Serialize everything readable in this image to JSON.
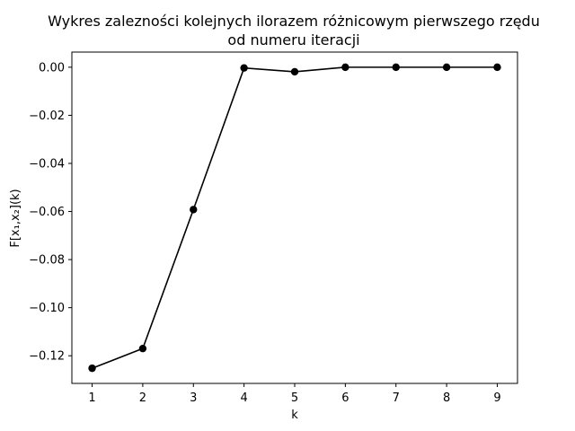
{
  "chart_data": {
    "type": "line",
    "title_lines": [
      "Wykres zalezności kolejnych ilorazem różnicowym pierwszego rzędu",
      "od numeru iteracji"
    ],
    "xlabel": "k",
    "ylabel": "F[x₁,x₂](k)",
    "x": [
      1,
      2,
      3,
      4,
      5,
      6,
      7,
      8,
      9
    ],
    "y": [
      -0.1252,
      -0.117,
      -0.0592,
      -0.0003,
      -0.0019,
      0.0,
      0.0,
      0.0,
      0.0
    ],
    "xlim": [
      0.6,
      9.4
    ],
    "ylim": [
      -0.1315,
      0.0063
    ],
    "x_ticks": [
      1,
      2,
      3,
      4,
      5,
      6,
      7,
      8,
      9
    ],
    "x_tick_labels": [
      "1",
      "2",
      "3",
      "4",
      "5",
      "6",
      "7",
      "8",
      "9"
    ],
    "y_ticks": [
      0.0,
      -0.02,
      -0.04,
      -0.06,
      -0.08,
      -0.1,
      -0.12
    ],
    "y_tick_labels": [
      "0.00",
      "−0.02",
      "−0.04",
      "−0.06",
      "−0.08",
      "−0.10",
      "−0.12"
    ],
    "line_color": "#000000",
    "marker": "circle",
    "grid": false,
    "legend": "none"
  }
}
